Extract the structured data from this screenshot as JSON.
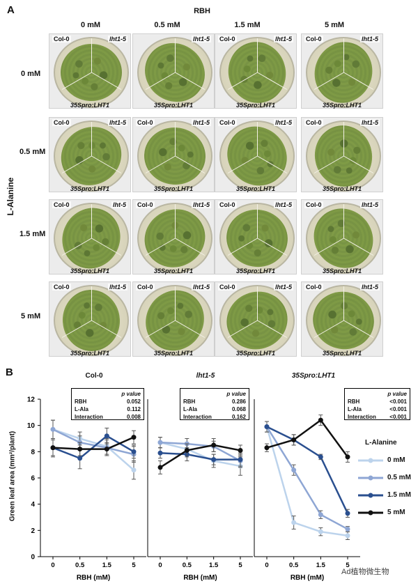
{
  "panel_a": {
    "letter": "A",
    "top_header": "RBH",
    "col_headers": [
      "0 mM",
      "0.5 mM",
      "1.5 mM",
      "5 mM"
    ],
    "row_axis_label": "L-Alanine",
    "row_headers": [
      "0 mM",
      "0.5 mM",
      "1.5 mM",
      "5 mM"
    ],
    "plates": [
      [
        {
          "tl": "Col-0",
          "tr": "lht1-5",
          "bt": "35Spro:LHT1"
        },
        {
          "tl": "",
          "tr": "lht1-5",
          "bt": "35Spro:LHT1"
        },
        {
          "tl": "Col-0",
          "tr": "lht1-5",
          "bt": "35Spro:LHT1"
        },
        {
          "tl": "Col-0",
          "tr": "lht1-5",
          "bt": "35Spro:LHT1"
        }
      ],
      [
        {
          "tl": "Col-0",
          "tr": "lht1-5",
          "bt": "35Spro:LHT1"
        },
        {
          "tl": "Col-0",
          "tr": "lht1-5",
          "bt": "35Spro:LHT1"
        },
        {
          "tl": "Col-0",
          "tr": "lht1-5",
          "bt": "35Spro:LHT1"
        },
        {
          "tl": "Col-0",
          "tr": "lht1-5",
          "bt": "35Spro:LHT1"
        }
      ],
      [
        {
          "tl": "Col-0",
          "tr": "lht-5",
          "bt": "35Spro:LHT1"
        },
        {
          "tl": "Col-0",
          "tr": "lht1-5",
          "bt": "35Spro:LHT1"
        },
        {
          "tl": "Col-0",
          "tr": "lht1-5",
          "bt": "35Spro:LHT1"
        },
        {
          "tl": "Col-0",
          "tr": "lht1-5",
          "bt": "35Spro:LHT1"
        }
      ],
      [
        {
          "tl": "Col-0",
          "tr": "lht1-5",
          "bt": "35Spro:LHT1"
        },
        {
          "tl": "Col-0",
          "tr": "lht1-5",
          "bt": "35Spro:LHT1"
        },
        {
          "tl": "Col-0",
          "tr": "lht1-5",
          "bt": "35Spro:LHT1"
        },
        {
          "tl": "Col-0",
          "tr": "lht1-5",
          "bt": "35Spro:LHT1"
        }
      ]
    ]
  },
  "panel_b": {
    "letter": "B",
    "legend_title": "L-Alanine",
    "stats_rows": [
      "RBH",
      "L-Ala",
      "Interaction"
    ],
    "stats_header": "p value",
    "watermark": "Ad植物微生物"
  },
  "colors": {
    "0 mM": "#bcd3ec",
    "0.5 mM": "#8ea6d4",
    "1.5 mM": "#2a4f8f",
    "5 mM": "#111111"
  },
  "chart_data": [
    {
      "type": "line",
      "title": "Col-0",
      "xlabel": "RBH (mM)",
      "ylabel": "Green leaf area (mm²/plant)",
      "categories": [
        "0",
        "0.5",
        "1.5",
        "5"
      ],
      "ylim": [
        0,
        12
      ],
      "yticks": [
        "0",
        "2",
        "4",
        "6",
        "8",
        "10",
        "12"
      ],
      "stats": [
        "0.052",
        "0.112",
        "0.008"
      ],
      "series": [
        {
          "name": "0 mM",
          "values": [
            9.7,
            9.0,
            8.4,
            6.6
          ],
          "errors": [
            0.7,
            0.5,
            0.6,
            0.7
          ]
        },
        {
          "name": "0.5 mM",
          "values": [
            9.7,
            8.7,
            8.3,
            7.8
          ],
          "errors": [
            0.7,
            0.5,
            0.6,
            0.6
          ]
        },
        {
          "name": "1.5 mM",
          "values": [
            8.3,
            7.5,
            9.2,
            8.0
          ],
          "errors": [
            0.7,
            0.8,
            0.6,
            0.5
          ]
        },
        {
          "name": "5 mM",
          "values": [
            8.3,
            8.2,
            8.2,
            9.1
          ],
          "errors": [
            0.6,
            0.5,
            0.5,
            0.5
          ]
        }
      ]
    },
    {
      "type": "line",
      "title": "lht1-5",
      "xlabel": "RBH (mM)",
      "categories": [
        "0",
        "0.5",
        "1.5",
        "5"
      ],
      "ylim": [
        0,
        12
      ],
      "stats": [
        "0.286",
        "0.068",
        "0.162"
      ],
      "series": [
        {
          "name": "0 mM",
          "values": [
            8.7,
            8.2,
            7.3,
            6.9
          ],
          "errors": [
            0.4,
            0.5,
            0.5,
            0.7
          ]
        },
        {
          "name": "0.5 mM",
          "values": [
            8.7,
            8.6,
            8.4,
            7.3
          ],
          "errors": [
            0.4,
            0.4,
            0.4,
            0.5
          ]
        },
        {
          "name": "1.5 mM",
          "values": [
            7.9,
            7.8,
            7.4,
            7.4
          ],
          "errors": [
            0.4,
            0.5,
            0.4,
            0.5
          ]
        },
        {
          "name": "5 mM",
          "values": [
            6.8,
            8.1,
            8.5,
            8.1
          ],
          "errors": [
            0.5,
            0.5,
            0.5,
            0.4
          ]
        }
      ]
    },
    {
      "type": "line",
      "title": "35Spro:LHT1",
      "xlabel": "RBH (mM)",
      "categories": [
        "0",
        "0.5",
        "1.5",
        "5"
      ],
      "ylim": [
        0,
        12
      ],
      "stats": [
        "<0.001",
        "<0.001",
        "<0.001"
      ],
      "series": [
        {
          "name": "0 mM",
          "values": [
            9.9,
            2.6,
            1.9,
            1.6
          ],
          "errors": [
            0.4,
            0.5,
            0.3,
            0.3
          ]
        },
        {
          "name": "0.5 mM",
          "values": [
            9.9,
            6.6,
            3.2,
            2.1
          ],
          "errors": [
            0.4,
            0.4,
            0.3,
            0.2
          ]
        },
        {
          "name": "1.5 mM",
          "values": [
            9.9,
            8.9,
            7.6,
            3.3
          ],
          "errors": [
            0.4,
            0.4,
            0.2,
            0.3
          ]
        },
        {
          "name": "5 mM",
          "values": [
            8.3,
            8.9,
            10.4,
            7.6
          ],
          "errors": [
            0.3,
            0.4,
            0.4,
            0.4
          ]
        }
      ]
    }
  ]
}
